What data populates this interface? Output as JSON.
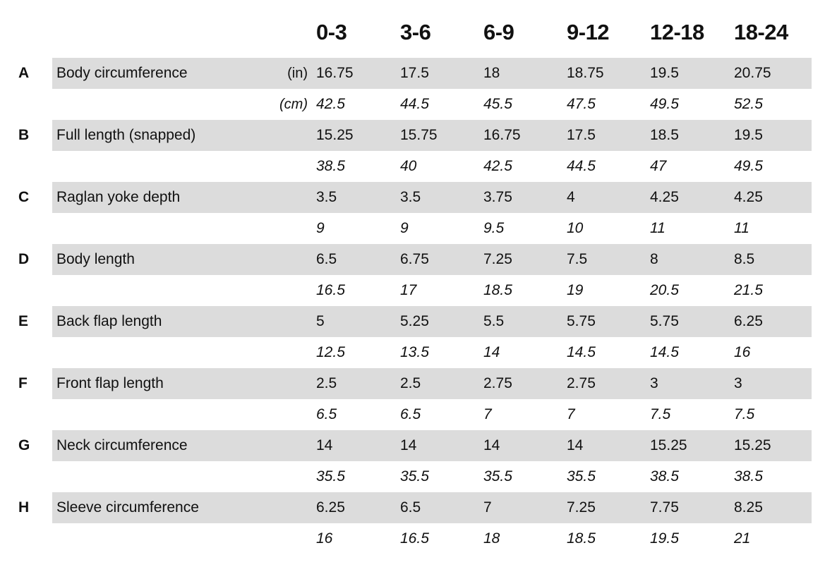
{
  "sizes": [
    "0-3",
    "3-6",
    "6-9",
    "9-12",
    "12-18",
    "18-24"
  ],
  "measurements": [
    {
      "letter": "A",
      "label": "Body circumference",
      "unit_in": "(in)",
      "unit_cm": "(cm)",
      "in": [
        "16.75",
        "17.5",
        "18",
        "18.75",
        "19.5",
        "20.75"
      ],
      "cm": [
        "42.5",
        "44.5",
        "45.5",
        "47.5",
        "49.5",
        "52.5"
      ]
    },
    {
      "letter": "B",
      "label": "Full length (snapped)",
      "unit_in": "",
      "unit_cm": "",
      "in": [
        "15.25",
        "15.75",
        "16.75",
        "17.5",
        "18.5",
        "19.5"
      ],
      "cm": [
        "38.5",
        "40",
        "42.5",
        "44.5",
        "47",
        "49.5"
      ]
    },
    {
      "letter": "C",
      "label": "Raglan yoke depth",
      "unit_in": "",
      "unit_cm": "",
      "in": [
        "3.5",
        "3.5",
        "3.75",
        "4",
        "4.25",
        "4.25"
      ],
      "cm": [
        "9",
        "9",
        "9.5",
        "10",
        "11",
        "11"
      ]
    },
    {
      "letter": "D",
      "label": "Body length",
      "unit_in": "",
      "unit_cm": "",
      "in": [
        "6.5",
        "6.75",
        "7.25",
        "7.5",
        "8",
        "8.5"
      ],
      "cm": [
        "16.5",
        "17",
        "18.5",
        "19",
        "20.5",
        "21.5"
      ]
    },
    {
      "letter": "E",
      "label": "Back flap length",
      "unit_in": "",
      "unit_cm": "",
      "in": [
        "5",
        "5.25",
        "5.5",
        "5.75",
        "5.75",
        "6.25"
      ],
      "cm": [
        "12.5",
        "13.5",
        "14",
        "14.5",
        "14.5",
        "16"
      ]
    },
    {
      "letter": "F",
      "label": "Front flap length",
      "unit_in": "",
      "unit_cm": "",
      "in": [
        "2.5",
        "2.5",
        "2.75",
        "2.75",
        "3",
        "3"
      ],
      "cm": [
        "6.5",
        "6.5",
        "7",
        "7",
        "7.5",
        "7.5"
      ]
    },
    {
      "letter": "G",
      "label": "Neck circumference",
      "unit_in": "",
      "unit_cm": "",
      "in": [
        "14",
        "14",
        "14",
        "14",
        "15.25",
        "15.25"
      ],
      "cm": [
        "35.5",
        "35.5",
        "35.5",
        "35.5",
        "38.5",
        "38.5"
      ]
    },
    {
      "letter": "H",
      "label": "Sleeve circumference",
      "unit_in": "",
      "unit_cm": "",
      "in": [
        "6.25",
        "6.5",
        "7",
        "7.25",
        "7.75",
        "8.25"
      ],
      "cm": [
        "16",
        "16.5",
        "18",
        "18.5",
        "19.5",
        "21"
      ]
    }
  ]
}
